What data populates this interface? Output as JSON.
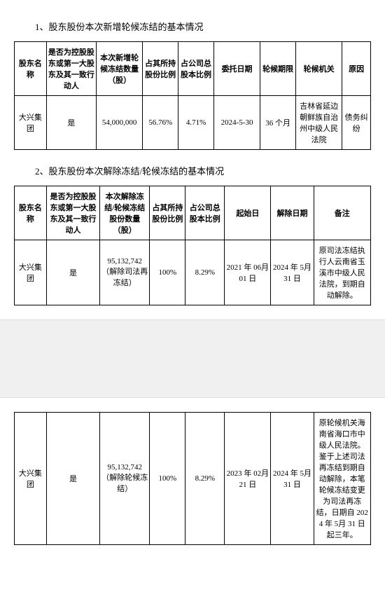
{
  "section1": {
    "title": "1、股东股份本次新增轮候冻结的基本情况",
    "headers": [
      "股东名称",
      "是否为控股股东或第一大股东及其一致行动人",
      "本次新增轮候冻结数量（股）",
      "占其所持股份比例",
      "占公司总股本比例",
      "委托日期",
      "轮候期限",
      "轮候机关",
      "原因"
    ],
    "row": [
      "大兴集团",
      "是",
      "54,000,000",
      "56.76%",
      "4.71%",
      "2024-5-30",
      "36 个月",
      "吉林省延边朝鲜族自治州中级人民法院",
      "债务纠纷"
    ]
  },
  "section2": {
    "title": "2、股东股份本次解除冻结/轮候冻结的基本情况",
    "headers": [
      "股东名称",
      "是否为控股股东或第一大股东及其一致行动人",
      "本次解除冻结/轮候冻结股份数量（股）",
      "占其所持股份比例",
      "占公司总股本比例",
      "起始日",
      "解除日期",
      "备注"
    ],
    "row": [
      "大兴集团",
      "是",
      "95,132,742（解除司法再冻结）",
      "100%",
      "8.29%",
      "2021 年 06月 01 日",
      "2024 年 5月 31 日",
      "原司法冻结执行人云南省玉溪市中级人民法院，到期自动解除。"
    ]
  },
  "section3": {
    "row": [
      "大兴集团",
      "是",
      "95,132,742（解除轮候冻结）",
      "100%",
      "8.29%",
      "2023 年 02月 21 日",
      "2024 年 5月 31 日",
      "原轮候机关海南省海口市中级人民法院。鉴于上述司法再冻结到期自动解除，本笔轮候冻结变更为司法再冻结，日期自 2024 年 5月 31 日起三年。"
    ]
  },
  "colwidths1": [
    "9%",
    "14%",
    "13%",
    "10%",
    "10%",
    "13%",
    "10%",
    "13%",
    "8%"
  ],
  "colwidths2": [
    "9%",
    "15%",
    "14%",
    "10%",
    "11%",
    "13%",
    "12%",
    "16%"
  ]
}
